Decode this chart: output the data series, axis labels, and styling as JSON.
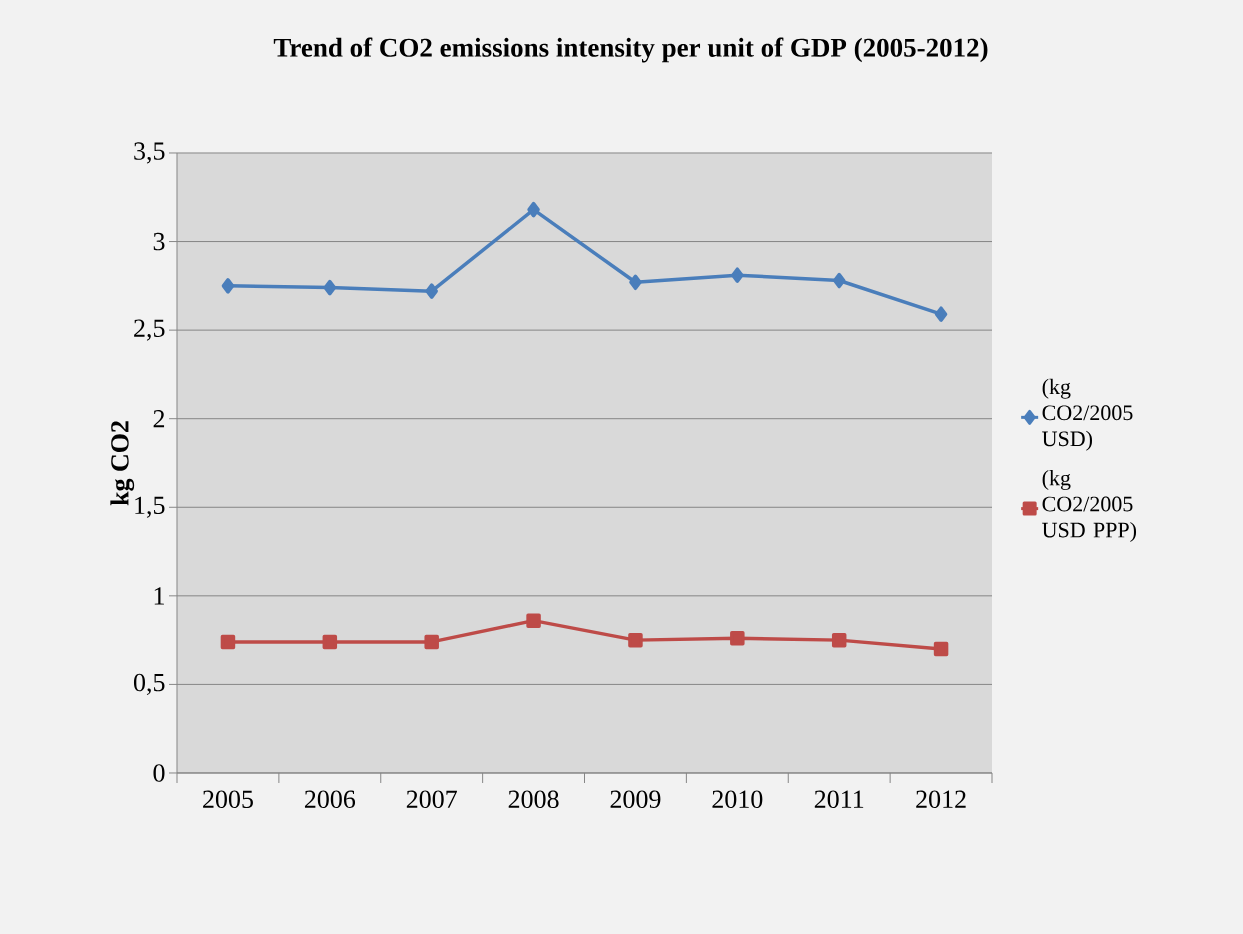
{
  "chart_data": {
    "type": "line",
    "title": "Trend of CO2 emissions intensity per unit of GDP (2005-2012)",
    "ylabel": "kg CO2",
    "categories": [
      "2005",
      "2006",
      "2007",
      "2008",
      "2009",
      "2010",
      "2011",
      "2012"
    ],
    "series": [
      {
        "name": "(kg CO2/2005 USD)",
        "color": "#4a7ebb",
        "marker": "diamond",
        "values": [
          2.75,
          2.74,
          2.72,
          3.18,
          2.77,
          2.81,
          2.78,
          2.59
        ]
      },
      {
        "name": "(kg CO2/2005 USD PPP)",
        "color": "#be4b48",
        "marker": "square",
        "values": [
          0.74,
          0.74,
          0.74,
          0.86,
          0.75,
          0.76,
          0.75,
          0.7
        ]
      }
    ],
    "ylim": [
      0,
      3.5
    ],
    "yticks": [
      0,
      {
        "value": 0.5,
        "label": "0,5"
      },
      1,
      {
        "value": 1.5,
        "label": "1,5"
      },
      2,
      {
        "value": 2.5,
        "label": "2,5"
      },
      3,
      {
        "value": 3.5,
        "label": "3,5"
      }
    ],
    "grid": "y",
    "legend": "right",
    "line_style": "solid"
  }
}
